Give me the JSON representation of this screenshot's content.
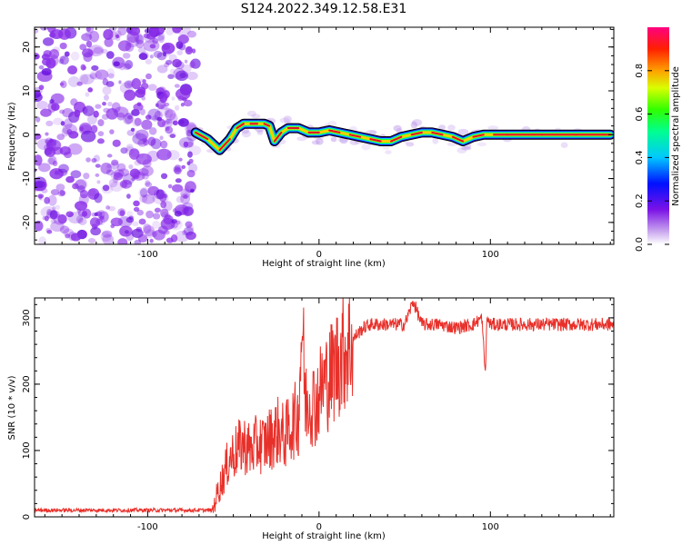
{
  "title": "S124.2022.349.12.58.E31",
  "chart_data": [
    {
      "type": "heatmap",
      "name": "spectrogram",
      "xlabel": "Height of straight line (km)",
      "ylabel": "Frequency (Hz)",
      "xlim": [
        -166,
        172
      ],
      "ylim": [
        -25,
        24.5
      ],
      "xticks": [
        -100,
        0,
        100
      ],
      "xtick_labels": [
        "-100",
        "0",
        "100"
      ],
      "yticks": [
        -20,
        -10,
        0,
        10,
        20
      ],
      "ytick_labels": [
        "-20",
        "-10",
        "0",
        "10",
        "20"
      ],
      "noise_region_x": [
        -166,
        -72
      ],
      "signal_trace": {
        "x": [
          -72,
          -65,
          -58,
          -52,
          -48,
          -44,
          -40,
          -36,
          -32,
          -29,
          -26,
          -22,
          -18,
          -12,
          -6,
          0,
          6,
          12,
          18,
          24,
          30,
          36,
          42,
          48,
          54,
          60,
          66,
          72,
          78,
          84,
          90,
          96,
          102,
          110,
          130,
          150,
          170
        ],
        "y": [
          0.5,
          -1,
          -3.5,
          -1,
          1.5,
          2.5,
          2.5,
          2.5,
          2.5,
          2,
          -1.5,
          0.5,
          1.5,
          1.5,
          0.5,
          0.5,
          1,
          0.5,
          0,
          -0.5,
          -1,
          -1.5,
          -1.5,
          -0.5,
          0,
          0.5,
          0.5,
          0,
          -0.5,
          -1.5,
          -0.5,
          0,
          0,
          0,
          0,
          0,
          0
        ]
      },
      "colorbar": {
        "label": "Normalized spectral amplitude",
        "range": [
          0,
          1
        ],
        "ticks": [
          0.0,
          0.2,
          0.4,
          0.6,
          0.8
        ],
        "tick_labels": [
          "0.0",
          "0.2",
          "0.4",
          "0.6",
          "0.8"
        ]
      }
    },
    {
      "type": "line",
      "name": "snr",
      "xlabel": "Height of straight line (km)",
      "ylabel": "SNR (10 * v/v)",
      "xlim": [
        -166,
        172
      ],
      "ylim": [
        0,
        330
      ],
      "xticks": [
        -100,
        0,
        100
      ],
      "xtick_labels": [
        "-100",
        "0",
        "100"
      ],
      "yticks": [
        0,
        100,
        200,
        300
      ],
      "ytick_labels": [
        "0",
        "100",
        "200",
        "300"
      ],
      "series": [
        {
          "name": "SNR",
          "x": [
            -166,
            -140,
            -110,
            -80,
            -62,
            -60,
            -56,
            -52,
            -48,
            -44,
            -40,
            -36,
            -32,
            -28,
            -24,
            -20,
            -16,
            -12,
            -10,
            -8,
            -6,
            -2,
            2,
            6,
            10,
            14,
            18,
            22,
            26,
            30,
            40,
            50,
            55,
            60,
            70,
            80,
            90,
            95,
            97,
            98,
            100,
            110,
            130,
            150,
            172
          ],
          "values": [
            10,
            10,
            10,
            10,
            10,
            30,
            60,
            90,
            100,
            110,
            100,
            110,
            110,
            120,
            130,
            120,
            140,
            150,
            300,
            170,
            180,
            170,
            200,
            210,
            230,
            250,
            260,
            275,
            285,
            290,
            290,
            290,
            325,
            290,
            290,
            285,
            290,
            300,
            215,
            300,
            290,
            290,
            290,
            290,
            290
          ]
        }
      ]
    }
  ],
  "colors": {
    "line": "#e8302a",
    "noise": "#8a2ee8",
    "trace_ridge": "#e0102a"
  }
}
